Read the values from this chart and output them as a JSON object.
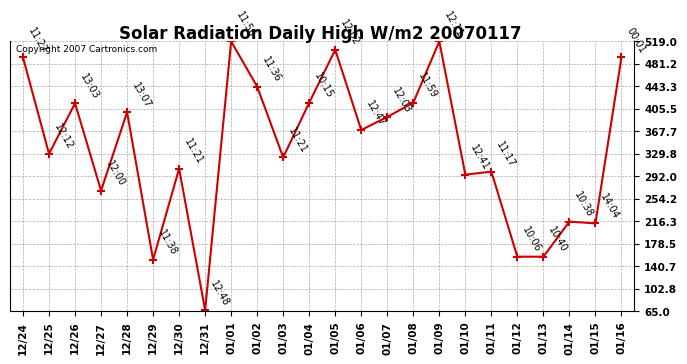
{
  "title": "Solar Radiation Daily High W/m2 20070117",
  "copyright": "Copyright 2007 Cartronics.com",
  "dates": [
    "12/24",
    "12/25",
    "12/26",
    "12/27",
    "12/28",
    "12/29",
    "12/30",
    "12/31",
    "01/01",
    "01/02",
    "01/03",
    "01/04",
    "01/05",
    "01/06",
    "01/07",
    "01/08",
    "01/09",
    "01/10",
    "01/11",
    "01/12",
    "01/13",
    "01/14",
    "01/15",
    "01/16"
  ],
  "values": [
    492,
    330,
    415,
    268,
    400,
    152,
    305,
    67,
    519,
    443,
    324,
    416,
    505,
    370,
    392,
    416,
    519,
    295,
    300,
    157,
    157,
    216,
    213,
    492
  ],
  "labels": [
    "11:27",
    "12:12",
    "13:03",
    "12:00",
    "13:07",
    "11:38",
    "11:21",
    "12:48",
    "11:56",
    "11:36",
    "11:21",
    "10:15",
    "12:02",
    "12:47",
    "12:03",
    "11:59",
    "12:11",
    "12:41",
    "11:17",
    "10:06",
    "10:40",
    "10:38",
    "14:04",
    "00:01"
  ],
  "yticks": [
    65.0,
    102.8,
    140.7,
    178.5,
    216.3,
    254.2,
    292.0,
    329.8,
    367.7,
    405.5,
    443.3,
    481.2,
    519.0
  ],
  "ylim": [
    65.0,
    519.0
  ],
  "line_color": "#cc0000",
  "bg_color": "#ffffff",
  "grid_color": "#aaaaaa",
  "title_fontsize": 12,
  "label_fontsize": 7,
  "tick_fontsize": 7.5,
  "copyright_fontsize": 6.5
}
